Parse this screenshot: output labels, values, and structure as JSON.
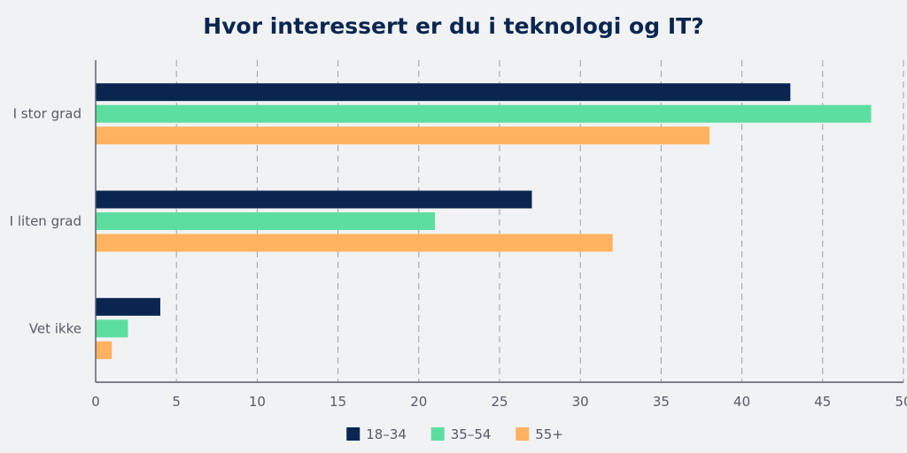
{
  "chart_data": {
    "type": "bar",
    "orientation": "horizontal",
    "title": "Hvor interessert er du i teknologi og IT?",
    "xlabel": "",
    "ylabel": "",
    "categories": [
      "I stor grad",
      "I liten grad",
      "Vet ikke"
    ],
    "series": [
      {
        "name": "18–34",
        "color": "#0a2650",
        "values": [
          43,
          27,
          4
        ]
      },
      {
        "name": "35–54",
        "color": "#5ddea1",
        "values": [
          48,
          21,
          2
        ]
      },
      {
        "name": "55+",
        "color": "#ffb25f",
        "values": [
          38,
          32,
          1
        ]
      }
    ],
    "xlim": [
      0,
      50
    ],
    "xticks": [
      0,
      5,
      10,
      15,
      20,
      25,
      30,
      35,
      40,
      45,
      50
    ],
    "grid": "vertical-dashed",
    "legend": "bottom-center"
  }
}
